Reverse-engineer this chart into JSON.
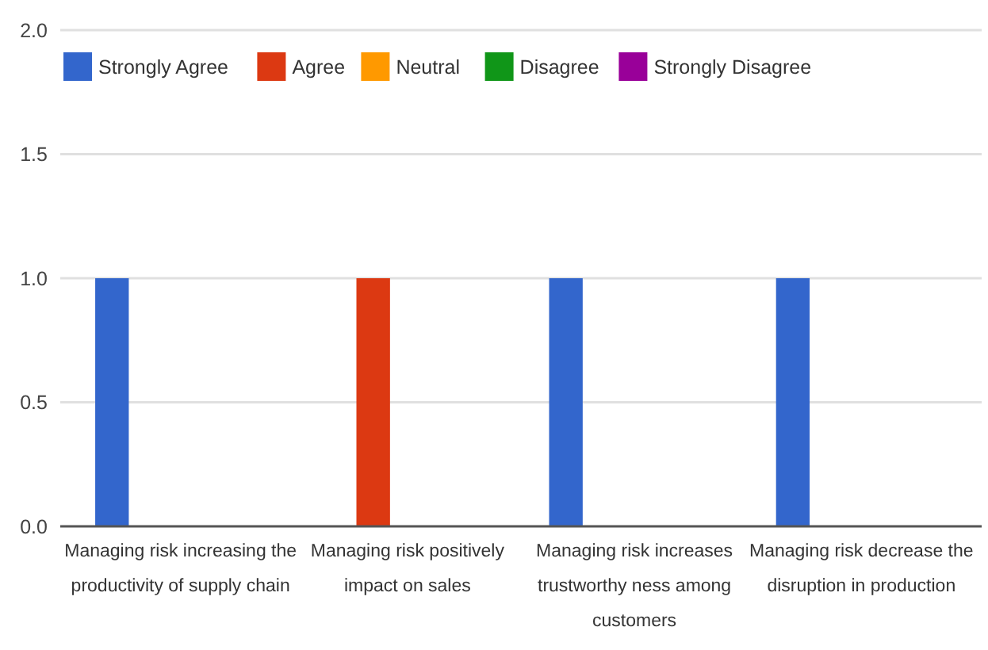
{
  "chart_data": {
    "type": "bar",
    "categories": [
      "Managing risk increasing the productivity of supply chain",
      "Managing risk positively impact on sales",
      "Managing risk increases trustworthy ness among customers",
      "Managing risk decrease the disruption in production"
    ],
    "series": [
      {
        "name": "Strongly Agree",
        "color": "#3366cc",
        "values": [
          1,
          0,
          1,
          1
        ]
      },
      {
        "name": "Agree",
        "color": "#dc3912",
        "values": [
          0,
          1,
          0,
          0
        ]
      },
      {
        "name": "Neutral",
        "color": "#ff9900",
        "values": [
          0,
          0,
          0,
          0
        ]
      },
      {
        "name": "Disagree",
        "color": "#109618",
        "values": [
          0,
          0,
          0,
          0
        ]
      },
      {
        "name": "Strongly Disagree",
        "color": "#990099",
        "values": [
          0,
          0,
          0,
          0
        ]
      }
    ],
    "ylim": [
      0,
      2
    ],
    "yticks": [
      {
        "value": 0,
        "label": "0.0"
      },
      {
        "value": 0.5,
        "label": "0.5"
      },
      {
        "value": 1,
        "label": "1.0"
      },
      {
        "value": 1.5,
        "label": "1.5"
      },
      {
        "value": 2,
        "label": "2.0"
      }
    ],
    "grid": "y",
    "legend": "top left"
  }
}
